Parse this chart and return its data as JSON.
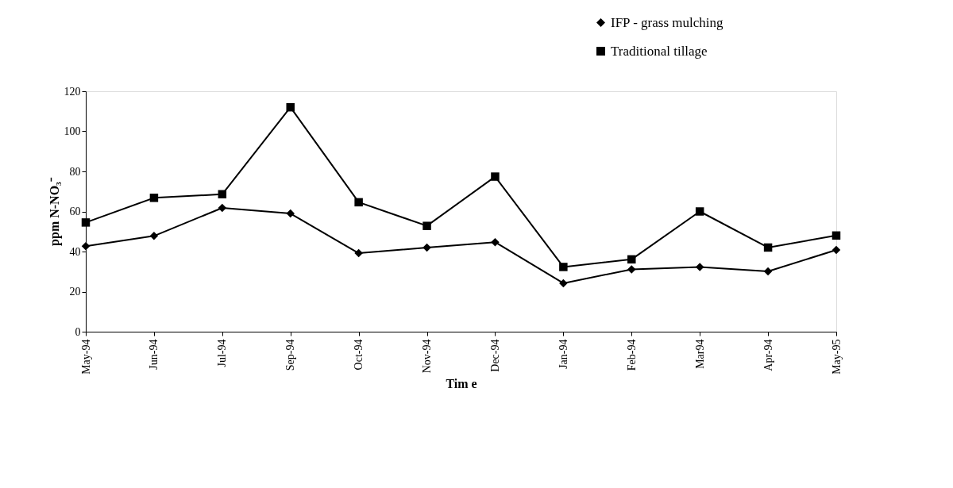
{
  "chart_data": {
    "type": "line",
    "xlabel": "Tim e",
    "ylabel": "ppm N-NO₃⁻",
    "categories": [
      "May-94",
      "Jun-94",
      "Jul-94",
      "Sep-94",
      "Oct-94",
      "Nov-94",
      "Dec-94",
      "Jan-94",
      "Feb-94",
      "Mar94",
      "Apr-94",
      "May-95"
    ],
    "series": [
      {
        "name": "IFP - grass mulching",
        "color": "#000000",
        "marker": "diamond",
        "values": [
          42.7,
          47.8,
          61.8,
          59,
          39.2,
          42,
          44.7,
          24.2,
          31.1,
          32.3,
          30.1,
          40.8
        ]
      },
      {
        "name": "Traditional tillage",
        "color": "#000000",
        "marker": "square",
        "values": [
          54.5,
          66.8,
          68.6,
          112,
          64.6,
          52.8,
          77.4,
          32.3,
          36.1,
          60,
          42,
          48
        ]
      }
    ],
    "ylim": [
      0,
      120
    ],
    "yticks": [
      0,
      20,
      40,
      60,
      80,
      100,
      120
    ],
    "grid": false,
    "legend": "top right",
    "line_style": "solid"
  }
}
